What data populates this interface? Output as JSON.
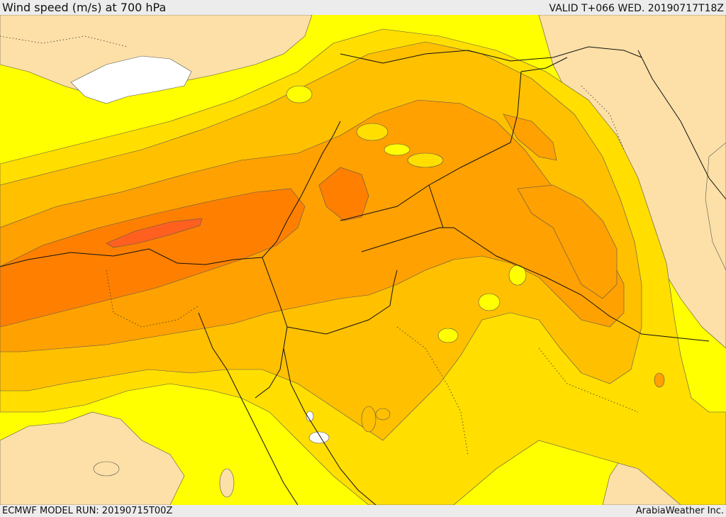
{
  "header": {
    "title": "Wind speed (m/s) at 700 hPa",
    "valid": "VALID T+066 WED. 20190717T18Z"
  },
  "footer": {
    "model_run": "ECMWF MODEL RUN: 20190715T00Z",
    "credit": "ArabiaWeather Inc."
  },
  "palette": {
    "sea_unshaded": "#ffffff",
    "band_low": "#fde0a7",
    "band_1": "#ffff00",
    "band_2": "#ffde00",
    "band_3": "#ffc000",
    "band_4": "#ffa100",
    "band_5": "#ff8000",
    "band_6": "#ff6020"
  }
}
